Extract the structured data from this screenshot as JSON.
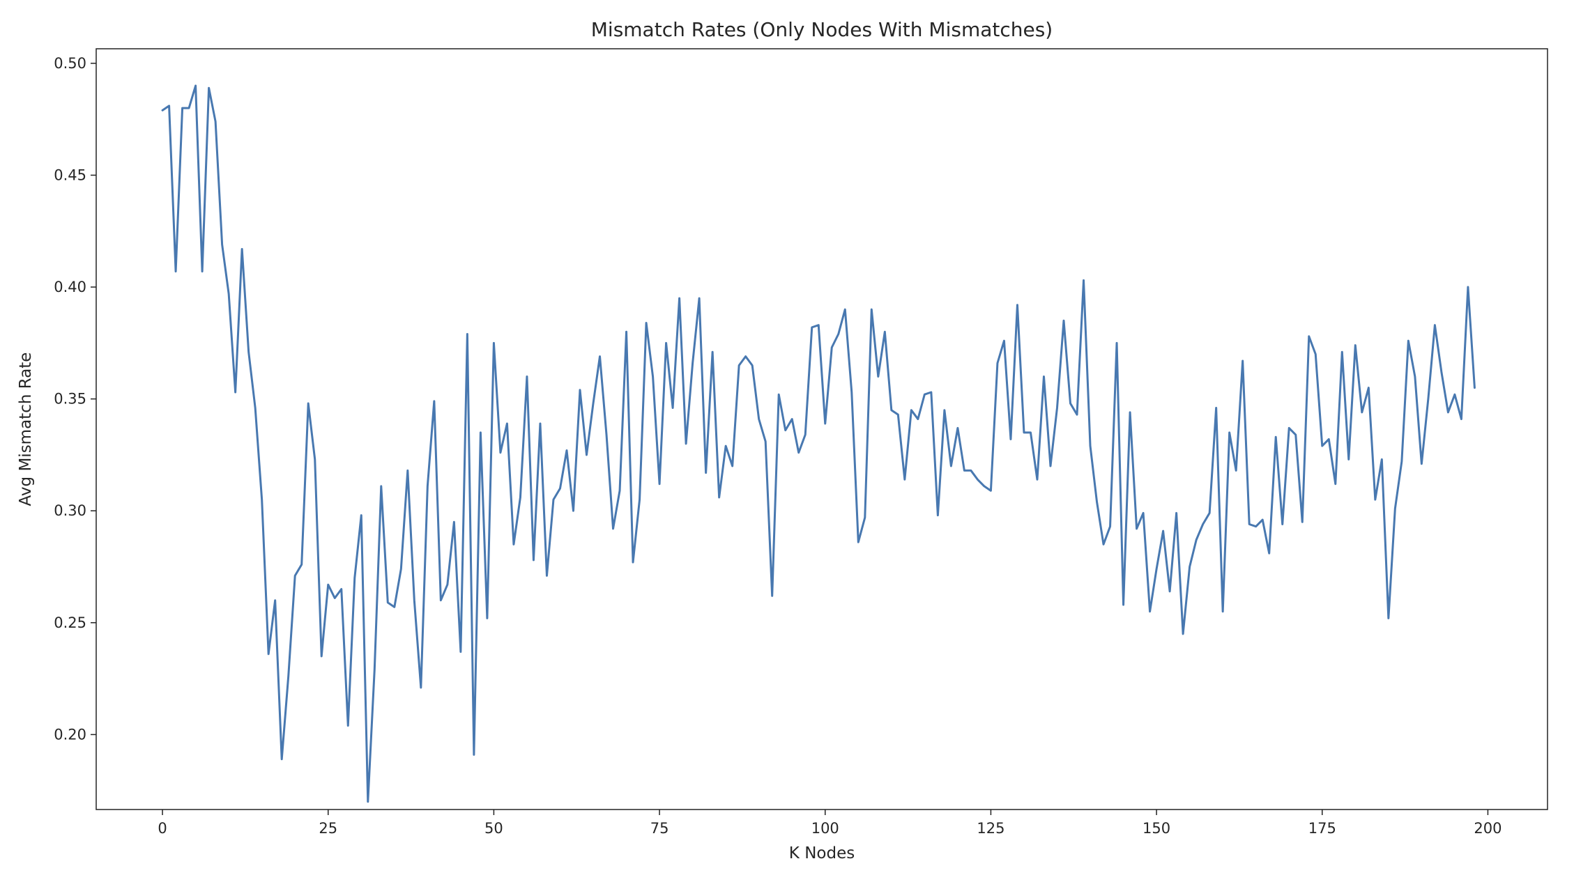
{
  "chart_data": {
    "type": "line",
    "title": "Mismatch Rates (Only Nodes With Mismatches)",
    "xlabel": "K Nodes",
    "ylabel": "Avg Mismatch Rate",
    "xlim": [
      -10,
      209
    ],
    "ylim": [
      0.1665,
      0.5065
    ],
    "x_ticks": [
      0,
      25,
      50,
      75,
      100,
      125,
      150,
      175,
      200
    ],
    "y_ticks": [
      0.2,
      0.25,
      0.3,
      0.35,
      0.4,
      0.45,
      0.5
    ],
    "x_tick_labels": [
      "0",
      "25",
      "50",
      "75",
      "100",
      "125",
      "150",
      "175",
      "200"
    ],
    "y_tick_labels": [
      "0.20",
      "0.25",
      "0.30",
      "0.35",
      "0.40",
      "0.45",
      "0.50"
    ],
    "grid": false,
    "legend": null,
    "series": [
      {
        "color": "#4878b0",
        "x_start": 0,
        "x_step": 1,
        "values": [
          0.479,
          0.481,
          0.407,
          0.48,
          0.48,
          0.49,
          0.407,
          0.489,
          0.474,
          0.419,
          0.397,
          0.353,
          0.417,
          0.371,
          0.346,
          0.305,
          0.236,
          0.26,
          0.189,
          0.226,
          0.271,
          0.276,
          0.348,
          0.323,
          0.235,
          0.267,
          0.261,
          0.265,
          0.204,
          0.27,
          0.298,
          0.17,
          0.229,
          0.311,
          0.259,
          0.257,
          0.274,
          0.318,
          0.26,
          0.221,
          0.311,
          0.349,
          0.26,
          0.267,
          0.295,
          0.237,
          0.379,
          0.191,
          0.335,
          0.252,
          0.375,
          0.326,
          0.339,
          0.285,
          0.306,
          0.36,
          0.278,
          0.339,
          0.271,
          0.305,
          0.31,
          0.327,
          0.3,
          0.354,
          0.325,
          0.348,
          0.369,
          0.334,
          0.292,
          0.309,
          0.38,
          0.277,
          0.305,
          0.384,
          0.36,
          0.312,
          0.375,
          0.346,
          0.395,
          0.33,
          0.366,
          0.395,
          0.317,
          0.371,
          0.306,
          0.329,
          0.32,
          0.365,
          0.369,
          0.365,
          0.341,
          0.331,
          0.262,
          0.352,
          0.336,
          0.341,
          0.326,
          0.334,
          0.382,
          0.383,
          0.339,
          0.373,
          0.379,
          0.39,
          0.353,
          0.286,
          0.297,
          0.39,
          0.36,
          0.38,
          0.345,
          0.343,
          0.314,
          0.345,
          0.341,
          0.352,
          0.353,
          0.298,
          0.345,
          0.32,
          0.337,
          0.318,
          0.318,
          0.314,
          0.311,
          0.309,
          0.366,
          0.376,
          0.332,
          0.392,
          0.335,
          0.335,
          0.314,
          0.36,
          0.32,
          0.346,
          0.385,
          0.348,
          0.343,
          0.403,
          0.329,
          0.304,
          0.285,
          0.293,
          0.375,
          0.258,
          0.344,
          0.292,
          0.299,
          0.255,
          0.274,
          0.291,
          0.264,
          0.299,
          0.245,
          0.275,
          0.287,
          0.294,
          0.299,
          0.346,
          0.255,
          0.335,
          0.318,
          0.367,
          0.294,
          0.293,
          0.296,
          0.281,
          0.333,
          0.294,
          0.337,
          0.334,
          0.295,
          0.378,
          0.37,
          0.329,
          0.332,
          0.312,
          0.371,
          0.323,
          0.374,
          0.344,
          0.355,
          0.305,
          0.323,
          0.252,
          0.301,
          0.322,
          0.376,
          0.36,
          0.321,
          0.35,
          0.383,
          0.362,
          0.344,
          0.352,
          0.341,
          0.4,
          0.355
        ]
      }
    ]
  }
}
